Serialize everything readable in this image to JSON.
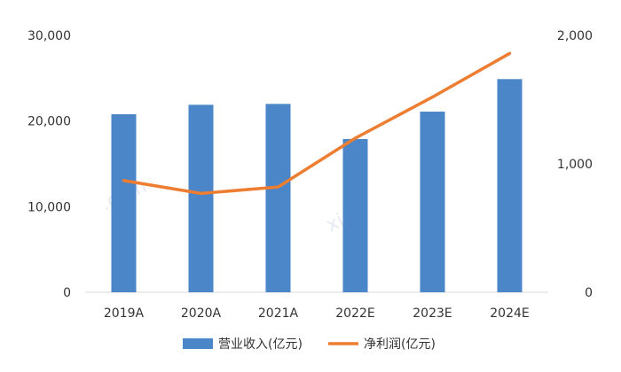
{
  "chart_data": {
    "type": "bar",
    "categories": [
      "2019A",
      "2020A",
      "2021A",
      "2022E",
      "2023E",
      "2024E"
    ],
    "series": [
      {
        "name": "营业收入(亿元)",
        "type": "bar",
        "axis": "left",
        "color": "#4a86c8",
        "values": [
          20800,
          21900,
          22000,
          17900,
          21100,
          24900
        ]
      },
      {
        "name": "净利润(亿元)",
        "type": "line",
        "axis": "right",
        "color": "#ed7d31",
        "values": [
          870,
          770,
          820,
          1200,
          1520,
          1860
        ]
      }
    ],
    "y_left": {
      "ylim": [
        0,
        30000
      ],
      "ticks": [
        0,
        10000,
        20000,
        30000
      ],
      "tick_labels": [
        "0",
        "10,000",
        "20,000",
        "30,000"
      ]
    },
    "y_right": {
      "ylim": [
        0,
        2000
      ],
      "ticks": [
        0,
        1000,
        2000
      ],
      "tick_labels": [
        "0",
        "1,000",
        "2,000"
      ]
    },
    "grid": false,
    "legend_position": "bottom"
  }
}
